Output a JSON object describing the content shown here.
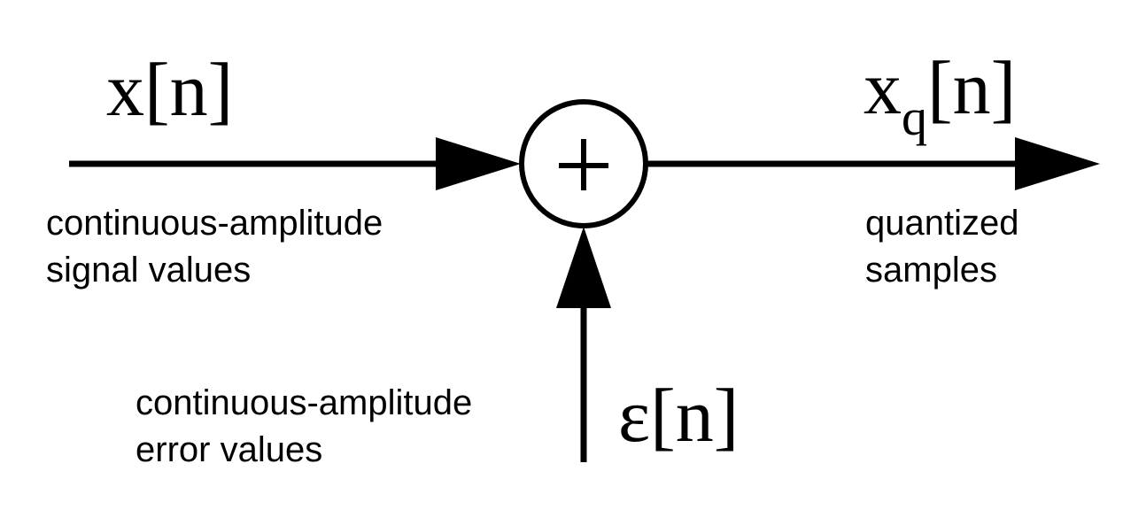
{
  "signals": {
    "input": {
      "base": "x",
      "index": "[n]"
    },
    "output": {
      "base": "x",
      "subscript": "q",
      "index": "[n]"
    },
    "error": {
      "base": "ε",
      "index": "[n]"
    }
  },
  "summing_junction": {
    "operator": "+"
  },
  "descriptions": {
    "input": [
      "continuous-amplitude",
      "signal values"
    ],
    "output": [
      "quantized",
      "samples"
    ],
    "error": [
      "continuous-amplitude",
      "error values"
    ]
  },
  "colors": {
    "ink": "#000000",
    "background": "#ffffff"
  }
}
